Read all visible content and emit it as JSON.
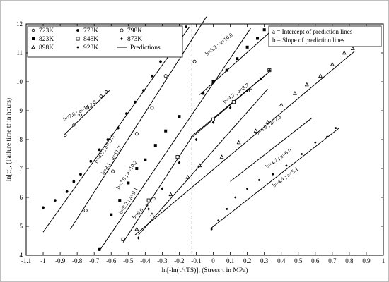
{
  "chart_data": {
    "type": "scatter",
    "xlabel": "ln[-ln(τ/τTS)], (Stress τ in MPa)",
    "ylabel": "ln[tf], (Failure time tf in hours)",
    "xlim": [
      -1.1,
      1.0
    ],
    "ylim": [
      4,
      12
    ],
    "x_ticks": [
      "-1.1",
      "-1",
      "-0.9",
      "-0.8",
      "-0.7",
      "-0.6",
      "-0.5",
      "-0.4",
      "-0.3",
      "-0.2",
      "-0.1",
      "0",
      "0.1",
      "0.2",
      "0.3",
      "0.4",
      "0.5",
      "0.6",
      "0.7",
      "0.8",
      "0.9",
      "1"
    ],
    "y_ticks": [
      "4",
      "5",
      "6",
      "7",
      "8",
      "9",
      "10",
      "11",
      "12"
    ],
    "grid": false,
    "legend_position": "top-left",
    "note_position": "top-right",
    "notes": [
      "a = Intercept of prediction lines",
      "b = Slope of prediction lines"
    ],
    "vline_x": -0.125,
    "series": [
      {
        "name": "723K",
        "marker": "open-circle-small",
        "x": [
          -0.87,
          -0.82,
          -0.78,
          -0.74,
          -0.7,
          -0.66,
          -0.63
        ],
        "y": [
          8.15,
          8.5,
          8.85,
          9.1,
          9.3,
          9.5,
          9.65
        ]
      },
      {
        "name": "773K",
        "marker": "filled-circle",
        "x": [
          -1.0,
          -0.93,
          -0.86,
          -0.82,
          -0.78,
          -0.72,
          -0.67,
          -0.62,
          -0.56,
          -0.51,
          -0.46,
          -0.41,
          -0.36,
          -0.31,
          -0.27,
          -0.22,
          -0.16
        ],
        "y": [
          5.65,
          5.9,
          6.2,
          6.55,
          6.8,
          7.25,
          7.65,
          8.0,
          8.4,
          8.9,
          9.3,
          9.7,
          10.2,
          10.7,
          11.1,
          11.5,
          11.9
        ]
      },
      {
        "name": "798K",
        "marker": "open-circle",
        "x": [
          -0.75,
          -0.59,
          -0.45,
          -0.36,
          -0.28,
          -0.11
        ],
        "y": [
          5.55,
          6.9,
          8.2,
          9.1,
          10.2,
          10.7
        ]
      },
      {
        "name": "823K",
        "marker": "filled-square",
        "x": [
          -0.67,
          -0.6,
          -0.55,
          -0.5,
          -0.45,
          -0.4,
          -0.34,
          -0.28,
          -0.2,
          -0.06,
          0.0,
          0.08,
          0.14,
          0.2,
          0.26,
          0.3
        ],
        "y": [
          4.2,
          5.4,
          5.9,
          6.5,
          7.0,
          7.3,
          7.8,
          8.3,
          8.8,
          9.6,
          10.0,
          10.4,
          10.8,
          11.2,
          11.5,
          11.8
        ]
      },
      {
        "name": "848K",
        "marker": "open-square",
        "x": [
          -0.53,
          -0.38,
          -0.21,
          0.0,
          0.12,
          0.22,
          0.33
        ],
        "y": [
          4.55,
          5.9,
          7.4,
          8.7,
          9.3,
          9.7,
          10.4
        ]
      },
      {
        "name": "873K",
        "marker": "small-diamond",
        "x": [
          -0.44,
          -0.38,
          -0.3,
          -0.2,
          -0.1,
          0.0,
          0.1,
          0.2,
          0.28,
          0.33
        ],
        "y": [
          4.6,
          5.6,
          6.3,
          7.2,
          8.0,
          8.6,
          9.1,
          9.7,
          10.1,
          10.4
        ]
      },
      {
        "name": "898K",
        "marker": "open-triangle",
        "x": [
          -0.45,
          -0.36,
          -0.25,
          -0.15,
          -0.08,
          0.05,
          0.15,
          0.25,
          0.32,
          0.4,
          0.48,
          0.55,
          0.63,
          0.7,
          0.77,
          0.82
        ],
        "y": [
          4.9,
          5.4,
          6.1,
          6.7,
          7.1,
          7.4,
          7.9,
          8.3,
          8.6,
          9.2,
          9.6,
          9.9,
          10.2,
          10.6,
          11.0,
          11.15
        ]
      },
      {
        "name": "923K",
        "marker": "small-dot",
        "x": [
          -0.01,
          0.03,
          0.08,
          0.13,
          0.2,
          0.27,
          0.35,
          0.43,
          0.52,
          0.6,
          0.67,
          0.72
        ],
        "y": [
          4.9,
          5.2,
          5.6,
          6.0,
          6.3,
          6.6,
          6.8,
          7.1,
          7.5,
          7.9,
          8.1,
          8.4
        ]
      }
    ],
    "predictions": {
      "name": "Predictions",
      "lines": [
        {
          "b": 7.0,
          "a": 14.2,
          "x": [
            -0.87,
            -0.61
          ],
          "y": [
            8.2,
            9.7
          ]
        },
        {
          "b": 8.0,
          "a": 12.7,
          "x": [
            -1.0,
            -0.14
          ],
          "y": [
            4.8,
            11.9
          ]
        },
        {
          "b": 8.1,
          "a": 11.7,
          "x": [
            -0.84,
            -0.04
          ],
          "y": [
            4.9,
            12.25
          ]
        },
        {
          "b": 7.9,
          "a": 10.2,
          "x": [
            -0.67,
            0.22
          ],
          "y": [
            4.15,
            11.85
          ]
        },
        {
          "b": 8.2,
          "a": 9.1,
          "x": [
            -0.53,
            -0.13,
            0.33
          ],
          "y": [
            4.45,
            8.05,
            10.35
          ]
        },
        {
          "b": 6.0,
          "a": 7.5,
          "x": [
            -0.44,
            0.32
          ],
          "y": [
            4.7,
            9.75
          ]
        },
        {
          "b": 5.2,
          "a": 10.0,
          "x": [
            -0.08,
            0.33
          ],
          "y": [
            9.55,
            11.7
          ]
        },
        {
          "b": 4.7,
          "a": 8.7,
          "x": [
            -0.13,
            0.33
          ],
          "y": [
            8.1,
            10.35
          ]
        },
        {
          "b": 4.5,
          "a": 7.3,
          "x": [
            -0.46,
            0.83
          ],
          "y": [
            4.7,
            11.05
          ]
        },
        {
          "b": 4.7,
          "a": 6.0,
          "x": [
            0.1,
            0.58
          ],
          "y": [
            6.55,
            8.75
          ]
        },
        {
          "b": 4.4,
          "a": 5.1,
          "x": [
            -0.01,
            0.74
          ],
          "y": [
            4.95,
            8.4
          ]
        }
      ]
    },
    "annotations": [
      {
        "text": "b=7.0 ; a=14.2",
        "x": -0.79,
        "y": 8.9,
        "angle": -28
      },
      {
        "text": "b=8.0 ; a=12.7",
        "x": -0.63,
        "y": 7.65,
        "angle": -57
      },
      {
        "text": "b=8.1 ; a=11.7",
        "x": -0.59,
        "y": 7.25,
        "angle": -57
      },
      {
        "text": "b=7.9 ; a=10.2",
        "x": -0.5,
        "y": 6.75,
        "angle": -57
      },
      {
        "text": "b=8.2 ; a=9.1",
        "x": -0.49,
        "y": 5.85,
        "angle": -57
      },
      {
        "text": "b=6.0 ; a=7.5",
        "x": -0.4,
        "y": 5.6,
        "angle": -45
      },
      {
        "text": "b=5.2 ; a=10.0",
        "x": 0.04,
        "y": 11.25,
        "angle": -38
      },
      {
        "text": "b=4.7 ; a=8.7",
        "x": 0.14,
        "y": 9.55,
        "angle": -36
      },
      {
        "text": "b=4.5 ; a=7.3",
        "x": 0.33,
        "y": 8.45,
        "angle": -36
      },
      {
        "text": "b=4.7 ; a=6.0",
        "x": 0.39,
        "y": 7.3,
        "angle": -36
      },
      {
        "text": "b=4.4 ; a=5.1",
        "x": 0.43,
        "y": 6.65,
        "angle": -36
      }
    ]
  }
}
